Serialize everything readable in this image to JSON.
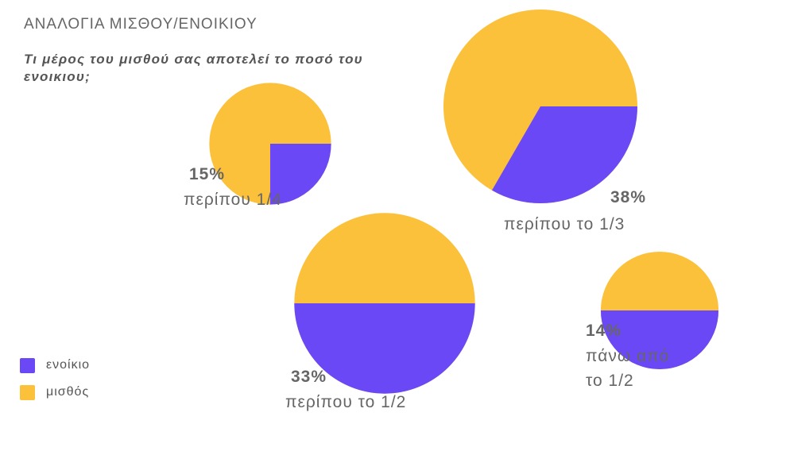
{
  "header": {
    "kicker": "ΑΝΑΛΟΓΙΑ ΜΙΣΘΟΥ/ΕΝΟΙΚΙΟΥ",
    "question": "Τι μέρος του μισθού σας αποτελεί το ποσό του ενοικιου;"
  },
  "colors": {
    "rent": "#6b48f5",
    "salary": "#fbc13b"
  },
  "legend": [
    {
      "label": "ενοίκιο",
      "color": "#6b48f5"
    },
    {
      "label": "μισθός",
      "color": "#fbc13b"
    }
  ],
  "chart_data": {
    "type": "pie",
    "title": "ΑΝΑΛΟΓΙΑ ΜΙΣΘΟΥ/ΕΝΟΙΚΙΟΥ",
    "subtitle": "Τι μέρος του μισθού σας αποτελεί το ποσό του ενοικιου;",
    "series_names": [
      "ενοίκιο",
      "μισθός"
    ],
    "pies": [
      {
        "category": "περίπου 1/4",
        "percent_label": "15%",
        "share_of_respondents": 15,
        "rent_fraction": 0.25
      },
      {
        "category": "περίπου το 1/3",
        "percent_label": "38%",
        "share_of_respondents": 38,
        "rent_fraction": 0.3333
      },
      {
        "category": "περίπου το 1/2",
        "percent_label": "33%",
        "share_of_respondents": 33,
        "rent_fraction": 0.5
      },
      {
        "category": "πάνω από το 1/2",
        "caption_lines": [
          "πάνω από",
          "το 1/2"
        ],
        "percent_label": "14%",
        "share_of_respondents": 14,
        "rent_fraction": 0.5
      }
    ]
  }
}
